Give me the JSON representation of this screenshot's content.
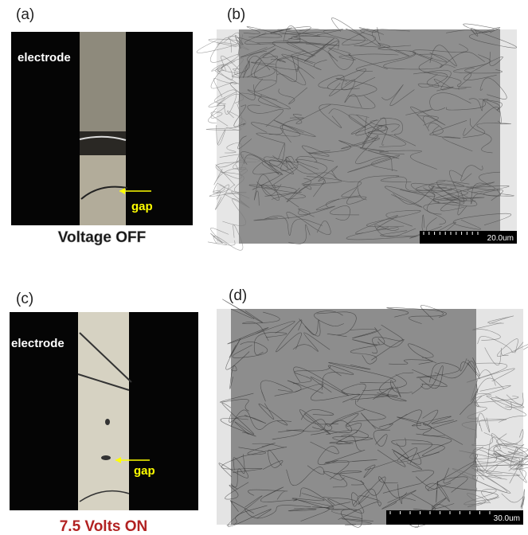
{
  "panels": [
    {
      "label": "(a)",
      "annotations": {
        "electrode": "electrode",
        "gap": "gap"
      },
      "caption": "Voltage OFF"
    },
    {
      "label": "(b)",
      "scale_bar": "20.0um"
    },
    {
      "label": "(c)",
      "annotations": {
        "electrode": "electrode",
        "gap": "gap"
      },
      "caption": "7.5 Volts ON"
    },
    {
      "label": "(d)",
      "scale_bar": "30.0um"
    }
  ]
}
